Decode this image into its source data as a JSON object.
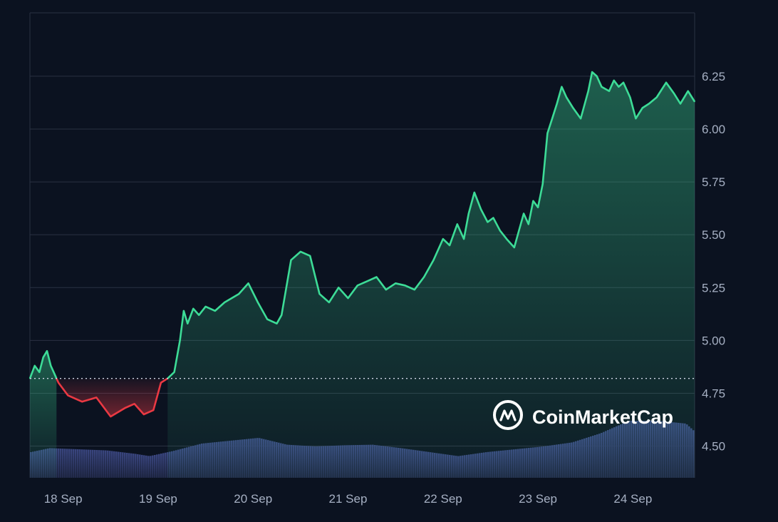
{
  "chart_data": {
    "type": "area",
    "title": "",
    "xlabel": "",
    "ylabel": "",
    "baseline": 4.82,
    "ylim": [
      4.35,
      6.55
    ],
    "yticks": [
      4.5,
      4.75,
      5.0,
      5.25,
      5.5,
      5.75,
      6.0,
      6.25
    ],
    "ytick_labels": [
      "4.50",
      "4.75",
      "5.00",
      "5.25",
      "5.50",
      "5.75",
      "6.00",
      "6.25"
    ],
    "xlim": [
      0,
      7
    ],
    "xtick_positions": [
      0.35,
      1.35,
      2.35,
      3.35,
      4.35,
      5.35,
      6.35
    ],
    "xtick_labels": [
      "18 Sep",
      "19 Sep",
      "20 Sep",
      "21 Sep",
      "22 Sep",
      "23 Sep",
      "24 Sep"
    ],
    "grid": true,
    "colors": {
      "background": "#0b1220",
      "above_baseline": "#3ddc97",
      "below_baseline": "#ea3943",
      "volume": "#2f3a66",
      "grid": "#2a3142",
      "tick_text": "#a6b0c3"
    },
    "series": [
      {
        "x": [
          0.0,
          0.05,
          0.1,
          0.14,
          0.18,
          0.22,
          0.26,
          0.3,
          0.4,
          0.55,
          0.7,
          0.85,
          1.0,
          1.1,
          1.2,
          1.3,
          1.38,
          1.45,
          1.52,
          1.58,
          1.62,
          1.66,
          1.72,
          1.78,
          1.85,
          1.95,
          2.05,
          2.2,
          2.3,
          2.4,
          2.5,
          2.6,
          2.65,
          2.75,
          2.85,
          2.95,
          3.05,
          3.15,
          3.25,
          3.35,
          3.45,
          3.55,
          3.65,
          3.75,
          3.85,
          3.95,
          4.05,
          4.15,
          4.25,
          4.35,
          4.42,
          4.5,
          4.57,
          4.62,
          4.68,
          4.75,
          4.82,
          4.88,
          4.95,
          5.02,
          5.1,
          5.15,
          5.2,
          5.25,
          5.3,
          5.35,
          5.4,
          5.45,
          5.5,
          5.55,
          5.6,
          5.65,
          5.72,
          5.8,
          5.88,
          5.92,
          5.97,
          6.02,
          6.1,
          6.15,
          6.2,
          6.25,
          6.32,
          6.38,
          6.45,
          6.52,
          6.6,
          6.7,
          6.78,
          6.85,
          6.93,
          7.0
        ],
        "y": [
          4.82,
          4.88,
          4.85,
          4.92,
          4.95,
          4.88,
          4.84,
          4.8,
          4.74,
          4.71,
          4.73,
          4.64,
          4.68,
          4.7,
          4.65,
          4.67,
          4.8,
          4.82,
          4.85,
          5.0,
          5.14,
          5.08,
          5.15,
          5.12,
          5.16,
          5.14,
          5.18,
          5.22,
          5.27,
          5.18,
          5.1,
          5.08,
          5.12,
          5.38,
          5.42,
          5.4,
          5.22,
          5.18,
          5.25,
          5.2,
          5.26,
          5.28,
          5.3,
          5.24,
          5.27,
          5.26,
          5.24,
          5.3,
          5.38,
          5.48,
          5.45,
          5.55,
          5.48,
          5.6,
          5.7,
          5.62,
          5.56,
          5.58,
          5.52,
          5.48,
          5.44,
          5.52,
          5.6,
          5.55,
          5.66,
          5.63,
          5.74,
          5.98,
          6.05,
          6.12,
          6.2,
          6.15,
          6.1,
          6.05,
          6.18,
          6.27,
          6.25,
          6.2,
          6.18,
          6.23,
          6.2,
          6.22,
          6.15,
          6.05,
          6.1,
          6.12,
          6.15,
          6.22,
          6.17,
          6.12,
          6.18,
          6.13
        ]
      }
    ],
    "volume": {
      "x": [
        0.0,
        0.2,
        0.5,
        0.8,
        1.1,
        1.25,
        1.5,
        1.8,
        2.1,
        2.4,
        2.7,
        3.0,
        3.3,
        3.6,
        3.9,
        4.2,
        4.5,
        4.8,
        5.1,
        5.4,
        5.7,
        6.0,
        6.3,
        6.6,
        6.9,
        7.0
      ],
      "values": [
        0.45,
        0.52,
        0.5,
        0.48,
        0.42,
        0.38,
        0.47,
        0.6,
        0.65,
        0.7,
        0.58,
        0.55,
        0.57,
        0.58,
        0.52,
        0.45,
        0.38,
        0.45,
        0.5,
        0.55,
        0.62,
        0.78,
        1.0,
        1.0,
        0.95,
        0.8
      ]
    }
  },
  "watermark": {
    "text": "CoinMarketCap",
    "icon": "coinmarketcap-logo-icon"
  }
}
